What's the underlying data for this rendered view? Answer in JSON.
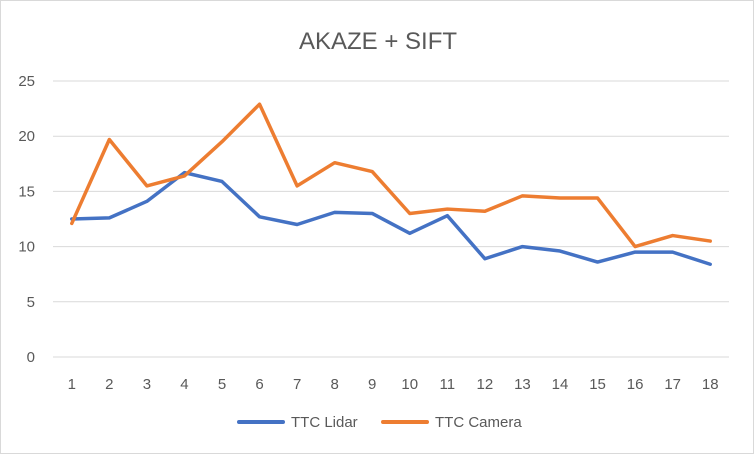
{
  "chart_data": {
    "type": "line",
    "title": "AKAZE + SIFT",
    "xlabel": "",
    "ylabel": "",
    "x": [
      1,
      2,
      3,
      4,
      5,
      6,
      7,
      8,
      9,
      10,
      11,
      12,
      13,
      14,
      15,
      16,
      17,
      18
    ],
    "ylim": [
      0,
      25
    ],
    "yticks": [
      0,
      5,
      10,
      15,
      20,
      25
    ],
    "grid": true,
    "legend_position": "bottom",
    "series": [
      {
        "name": "TTC Lidar",
        "color": "#4472c4",
        "values": [
          12.5,
          12.6,
          14.1,
          16.7,
          15.9,
          12.7,
          12.0,
          13.1,
          13.0,
          11.2,
          12.8,
          8.9,
          10.0,
          9.6,
          8.6,
          9.5,
          9.5,
          8.4
        ]
      },
      {
        "name": "TTC Camera",
        "color": "#ed7d31",
        "values": [
          12.1,
          19.7,
          15.5,
          16.4,
          19.5,
          22.9,
          15.5,
          17.6,
          16.8,
          13.0,
          13.4,
          13.2,
          14.6,
          14.4,
          14.4,
          10.0,
          11.0,
          10.5
        ]
      }
    ]
  }
}
